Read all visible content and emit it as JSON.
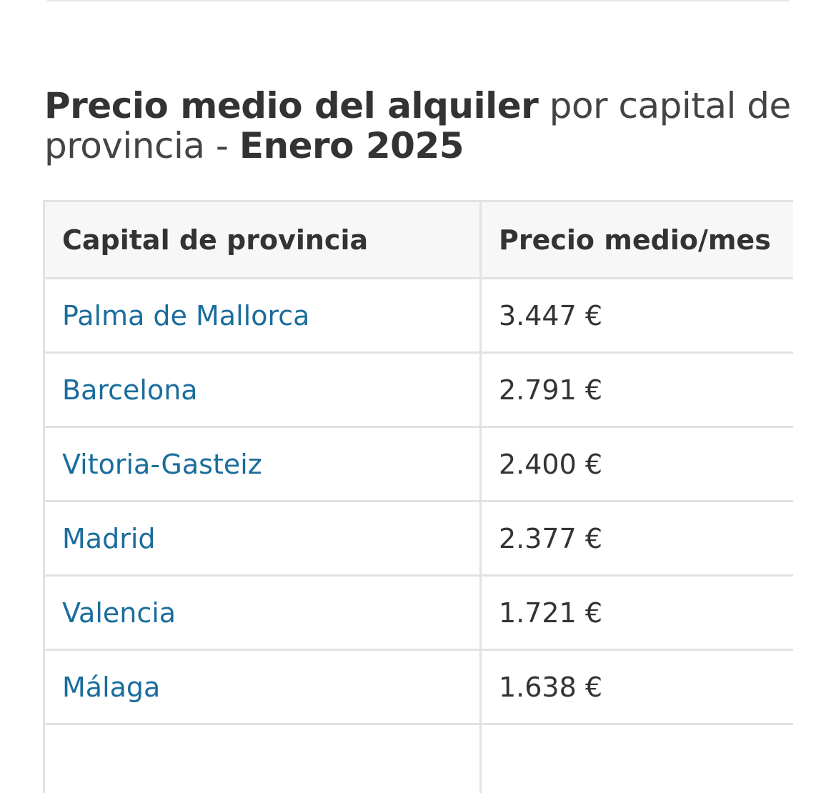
{
  "title": {
    "part1_bold": "Precio medio del alquiler",
    "part2_light": " por capital de provincia - ",
    "part3_bold": "Enero 2025"
  },
  "table": {
    "headers": [
      "Capital de provincia",
      "Precio medio/mes"
    ],
    "rows": [
      {
        "city": "Palma de Mallorca",
        "price": "3.447 €"
      },
      {
        "city": "Barcelona",
        "price": "2.791 €"
      },
      {
        "city": "Vitoria-Gasteiz",
        "price": "2.400 €"
      },
      {
        "city": "Madrid",
        "price": "2.377 €"
      },
      {
        "city": "Valencia",
        "price": "1.721 €"
      },
      {
        "city": "Málaga",
        "price": "1.638 €"
      },
      {
        "city": "",
        "price": ""
      }
    ]
  },
  "colors": {
    "link": "#1a6d9c",
    "text": "#333333",
    "border": "#e2e2e2",
    "header_bg": "#f7f7f7"
  }
}
